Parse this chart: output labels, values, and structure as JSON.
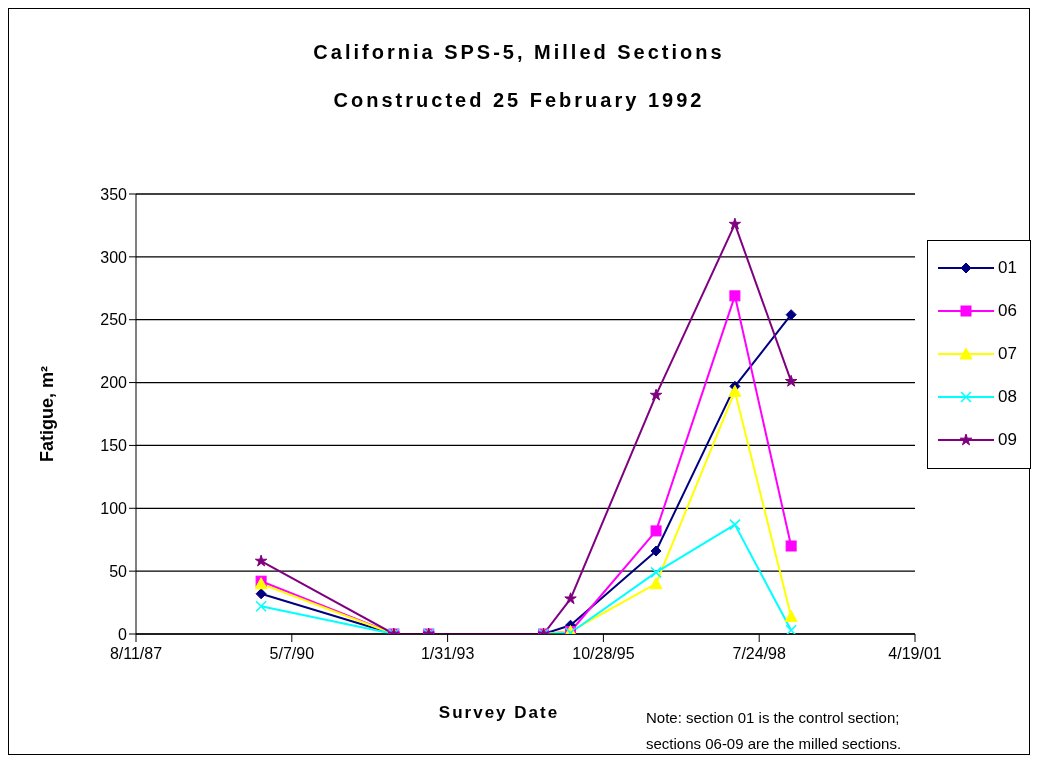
{
  "chart_data": {
    "type": "line",
    "title": "California SPS-5, Milled Sections",
    "subtitle": "Constructed 25 February 1992",
    "xlabel": "Survey Date",
    "ylabel": "Fatigue, m²",
    "annotations": [
      "Note: section 01 is the control section;",
      "sections 06-09 are the milled sections."
    ],
    "x": [
      "1989-10-22",
      "1992-02-21",
      "1992-10-02",
      "1994-10-09",
      "1995-03-31",
      "1996-09-30",
      "1998-02-18",
      "1999-02-14"
    ],
    "series": [
      {
        "name": "01",
        "color": "#000080",
        "marker": "diamond",
        "values": [
          32,
          0,
          0,
          0,
          7,
          66,
          197,
          254
        ]
      },
      {
        "name": "06",
        "color": "#ff00ff",
        "marker": "square",
        "values": [
          42,
          0,
          0,
          0,
          2,
          82,
          269,
          70
        ]
      },
      {
        "name": "07",
        "color": "#ffff00",
        "marker": "triangle",
        "values": [
          40,
          0,
          0,
          0,
          2,
          40,
          193,
          14
        ]
      },
      {
        "name": "08",
        "color": "#00ffff",
        "marker": "cross",
        "values": [
          22,
          0,
          0,
          0,
          1,
          49,
          87,
          3
        ]
      },
      {
        "name": "09",
        "color": "#800080",
        "marker": "star",
        "values": [
          58,
          0,
          0,
          0,
          28,
          190,
          326,
          201
        ]
      }
    ],
    "xlim": [
      "1987-08-11",
      "2001-04-19"
    ],
    "xticks": [
      {
        "value": "1987-08-11",
        "label": "8/11/87"
      },
      {
        "value": "1990-05-07",
        "label": "5/7/90"
      },
      {
        "value": "1993-01-31",
        "label": "1/31/93"
      },
      {
        "value": "1995-10-28",
        "label": "10/28/95"
      },
      {
        "value": "1998-07-24",
        "label": "7/24/98"
      },
      {
        "value": "2001-04-19",
        "label": "4/19/01"
      }
    ],
    "ylim": [
      0,
      350
    ],
    "yticks": [
      0,
      50,
      100,
      150,
      200,
      250,
      300,
      350
    ],
    "grid": "y",
    "legend": "right",
    "line_style": "solid"
  }
}
